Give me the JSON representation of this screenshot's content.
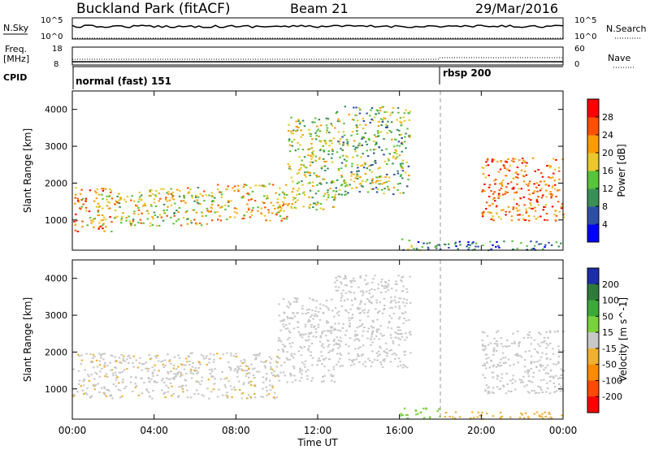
{
  "header": {
    "title": "Buckland Park (fitACF)",
    "beam": "Beam 21",
    "date": "29/Mar/2016"
  },
  "status_panels": {
    "nsky": {
      "label": "N.Sky",
      "ticks": [
        "10^5",
        "10^0"
      ]
    },
    "nsearch": {
      "label": "N.Search",
      "ticks": [
        "10^5",
        "10^0"
      ]
    },
    "freq": {
      "label_line1": "Freq.",
      "label_line2": "[MHz]",
      "ticks": [
        "18",
        "8"
      ]
    },
    "nave": {
      "label": "Nave",
      "ticks": [
        "60",
        "0"
      ]
    },
    "cpid": {
      "label": "CPID",
      "modes": [
        {
          "name": "normal (fast) 151",
          "start": "00:00"
        },
        {
          "name": "rbsp 200",
          "start": "18:00"
        }
      ]
    }
  },
  "chart_data": [
    {
      "type": "heatmap",
      "name": "power-panel",
      "xlabel": "",
      "ylabel": "Slant Range [km]",
      "x_ticks": [
        "00:00",
        "04:00",
        "08:00",
        "12:00",
        "16:00",
        "20:00",
        "00:00"
      ],
      "y_ticks": [
        "1000",
        "2000",
        "3000",
        "4000"
      ],
      "xlim": [
        0,
        24
      ],
      "ylim": [
        180,
        4500
      ],
      "colorbar": {
        "label": "Power [dB]",
        "ticks": [
          "4",
          "8",
          "12",
          "16",
          "20",
          "24",
          "28"
        ],
        "colors": [
          "#0000ff",
          "#2e4fa8",
          "#3a8f56",
          "#57c43a",
          "#e8c82a",
          "#ff9a00",
          "#ff5000",
          "#ff0000"
        ]
      },
      "regions": [
        {
          "t0": 0.0,
          "t1": 2.0,
          "r0": 700,
          "r1": 1900,
          "value": 22
        },
        {
          "t0": 2.0,
          "t1": 7.0,
          "r0": 850,
          "r1": 1900,
          "value": 18
        },
        {
          "t0": 7.0,
          "t1": 10.5,
          "r0": 1000,
          "r1": 2000,
          "value": 20
        },
        {
          "t0": 10.5,
          "t1": 12.8,
          "r0": 1300,
          "r1": 3800,
          "value": 16
        },
        {
          "t0": 12.8,
          "t1": 16.5,
          "r0": 1700,
          "r1": 4100,
          "value": 14
        },
        {
          "t0": 16.0,
          "t1": 18.0,
          "r0": 200,
          "r1": 500,
          "value": 10
        },
        {
          "t0": 18.0,
          "t1": 24.0,
          "r0": 200,
          "r1": 450,
          "value": 8
        },
        {
          "t0": 20.0,
          "t1": 24.0,
          "r0": 1000,
          "r1": 2700,
          "value": 24
        }
      ],
      "reference_line_ut": 18.0
    },
    {
      "type": "heatmap",
      "name": "velocity-panel",
      "xlabel": "Time UT",
      "ylabel": "Slant Range [km]",
      "x_ticks": [
        "00:00",
        "04:00",
        "08:00",
        "12:00",
        "16:00",
        "20:00",
        "00:00"
      ],
      "y_ticks": [
        "1000",
        "2000",
        "3000",
        "4000"
      ],
      "xlim": [
        0,
        24
      ],
      "ylim": [
        180,
        4500
      ],
      "colorbar": {
        "label": "Velocity [m s^-1]",
        "ticks": [
          "200",
          "100",
          "50",
          "15",
          "-15",
          "-50",
          "-100",
          "-200"
        ],
        "colors": [
          "#1c2fa8",
          "#2f7a3a",
          "#3da83a",
          "#7ad23a",
          "#c8c8c8",
          "#f0b030",
          "#ff8a00",
          "#ff4a00",
          "#ff0000"
        ]
      },
      "regions": [
        {
          "t0": 0.0,
          "t1": 10.0,
          "r0": 750,
          "r1": 2000,
          "value": -10
        },
        {
          "t0": 10.0,
          "t1": 12.8,
          "r0": 1200,
          "r1": 3500,
          "value": 5
        },
        {
          "t0": 12.8,
          "t1": 16.5,
          "r0": 1600,
          "r1": 4100,
          "value": 0
        },
        {
          "t0": 16.0,
          "t1": 18.0,
          "r0": 200,
          "r1": 500,
          "value": 40
        },
        {
          "t0": 18.0,
          "t1": 24.0,
          "r0": 200,
          "r1": 400,
          "value": -40
        },
        {
          "t0": 20.0,
          "t1": 24.0,
          "r0": 900,
          "r1": 2600,
          "value": 0
        }
      ],
      "reference_line_ut": 18.0
    }
  ]
}
